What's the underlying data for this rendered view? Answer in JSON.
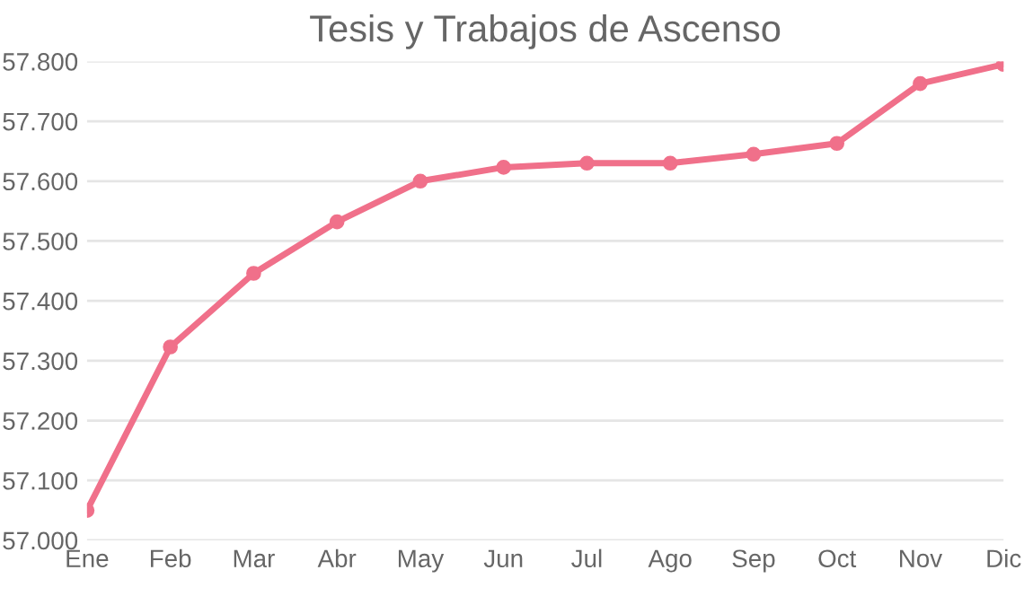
{
  "chart_data": {
    "type": "line",
    "title": "Tesis y Trabajos de Ascenso",
    "categories": [
      "Ene",
      "Feb",
      "Mar",
      "Abr",
      "May",
      "Jun",
      "Jul",
      "Ago",
      "Sep",
      "Oct",
      "Nov",
      "Dic"
    ],
    "series": [
      {
        "color": "#f0708a",
        "values": [
          57.05,
          57.323,
          57.446,
          57.532,
          57.6,
          57.623,
          57.63,
          57.63,
          57.645,
          57.663,
          57.763,
          57.795
        ]
      }
    ],
    "ylim": [
      57.0,
      57.8
    ],
    "yticks": [
      {
        "value": 57.0,
        "label": "57.000"
      },
      {
        "value": 57.1,
        "label": "57.100"
      },
      {
        "value": 57.2,
        "label": "57.200"
      },
      {
        "value": 57.3,
        "label": "57.300"
      },
      {
        "value": 57.4,
        "label": "57.400"
      },
      {
        "value": 57.5,
        "label": "57.500"
      },
      {
        "value": 57.6,
        "label": "57.600"
      },
      {
        "value": 57.7,
        "label": "57.700"
      },
      {
        "value": 57.8,
        "label": "57.800"
      }
    ],
    "grid": "y",
    "marker": "circle",
    "line_style": "solid"
  }
}
